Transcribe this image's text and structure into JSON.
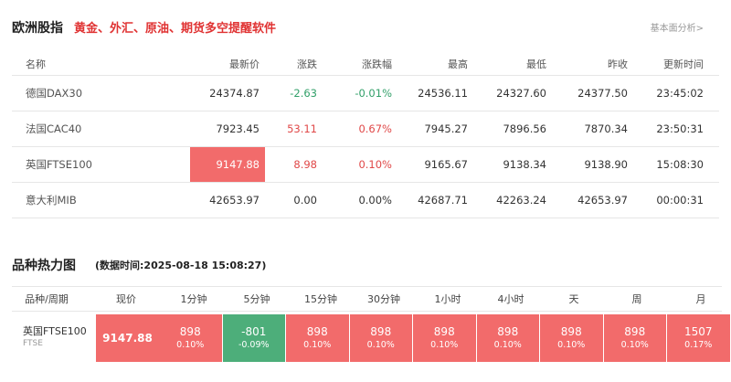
{
  "header": {
    "title": "欧洲股指",
    "subtitle": "黄金、外汇、原油、期货多空提醒软件",
    "more_link": "基本面分析>"
  },
  "indices": {
    "columns": [
      "名称",
      "最新价",
      "涨跌",
      "涨跌幅",
      "最高",
      "最低",
      "昨收",
      "更新时间"
    ],
    "rows": [
      {
        "name": "德国DAX30",
        "last": "24374.87",
        "change": "-2.63",
        "pct": "-0.01%",
        "high": "24536.11",
        "low": "24327.60",
        "prev": "24377.50",
        "time": "23:45:02",
        "trend": "down",
        "highlight": false
      },
      {
        "name": "法国CAC40",
        "last": "7923.45",
        "change": "53.11",
        "pct": "0.67%",
        "high": "7945.27",
        "low": "7896.56",
        "prev": "7870.34",
        "time": "23:50:31",
        "trend": "up",
        "highlight": false
      },
      {
        "name": "英国FTSE100",
        "last": "9147.88",
        "change": "8.98",
        "pct": "0.10%",
        "high": "9165.67",
        "low": "9138.34",
        "prev": "9138.90",
        "time": "15:08:30",
        "trend": "up",
        "highlight": true
      },
      {
        "name": "意大利MIB",
        "last": "42653.97",
        "change": "0.00",
        "pct": "0.00%",
        "high": "42687.71",
        "low": "42263.24",
        "prev": "42653.97",
        "time": "00:00:31",
        "trend": "flat",
        "highlight": false
      }
    ]
  },
  "heatmap": {
    "title": "品种热力图",
    "timestamp": "(数据时间:2025-08-18 15:08:27)",
    "columns": [
      "品种/周期",
      "现价",
      "1分钟",
      "5分钟",
      "15分钟",
      "30分钟",
      "1小时",
      "4小时",
      "天",
      "周",
      "月"
    ],
    "row": {
      "name": "英国FTSE100",
      "code": "FTSE",
      "price": "9147.88",
      "cells": [
        {
          "value": "898",
          "pct": "0.10%",
          "trend": "up"
        },
        {
          "value": "-801",
          "pct": "-0.09%",
          "trend": "down"
        },
        {
          "value": "898",
          "pct": "0.10%",
          "trend": "up"
        },
        {
          "value": "898",
          "pct": "0.10%",
          "trend": "up"
        },
        {
          "value": "898",
          "pct": "0.10%",
          "trend": "up"
        },
        {
          "value": "898",
          "pct": "0.10%",
          "trend": "up"
        },
        {
          "value": "898",
          "pct": "0.10%",
          "trend": "up"
        },
        {
          "value": "898",
          "pct": "0.10%",
          "trend": "up"
        },
        {
          "value": "1507",
          "pct": "0.17%",
          "trend": "up"
        }
      ]
    }
  },
  "colors": {
    "up": "#e04848",
    "down": "#33a06a",
    "highlight": "#f26b6b",
    "heat_up": "#f26b6b",
    "heat_down": "#4dae7a"
  }
}
